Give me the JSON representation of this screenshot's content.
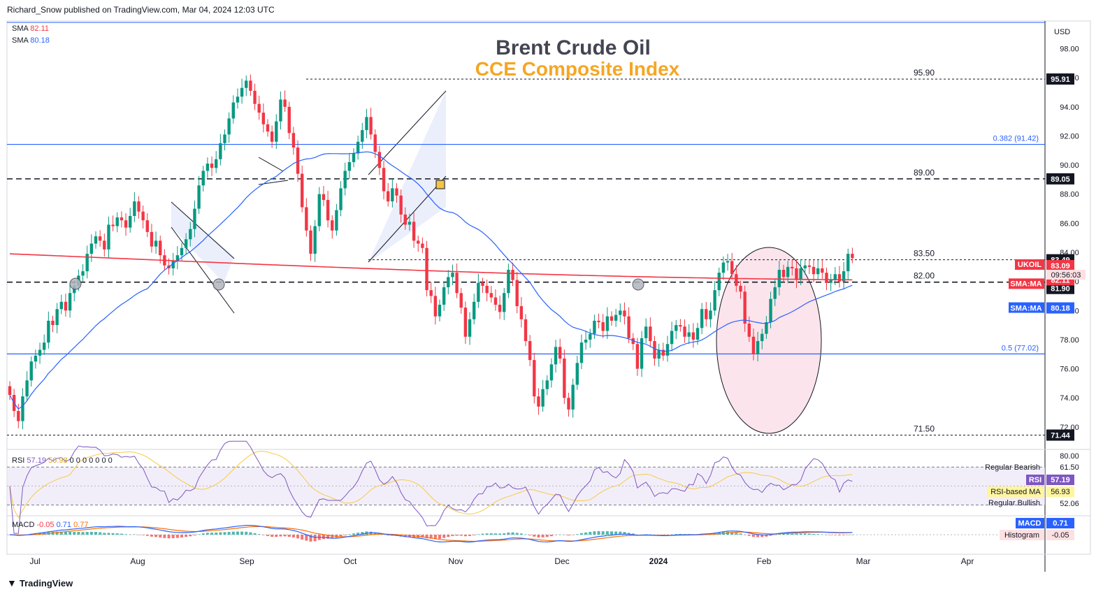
{
  "header": {
    "publisher": "Richard_Snow published on TradingView.com, Mar 04, 2024 12:03 UTC"
  },
  "title": "Brent Crude Oil",
  "subtitle": "CCE Composite Index",
  "currency": "USD",
  "sma_legend": [
    {
      "label": "SMA",
      "value": "82.11",
      "color": "#f23645"
    },
    {
      "label": "SMA",
      "value": "80.18",
      "color": "#2962ff"
    }
  ],
  "footer": {
    "brand": "TradingView"
  },
  "colors": {
    "up": "#089981",
    "down": "#f23645",
    "sma_red": "#f23645",
    "sma_blue": "#2962ff",
    "fib": "#2962ff",
    "rsi": "#7e57c2",
    "rsi_ma": "#f7c948",
    "macd": "#2962ff",
    "signal": "#ff6d00"
  },
  "chart_data": {
    "type": "candlestick",
    "symbol": "UKOIL",
    "x_ticks": [
      "Jul",
      "Aug",
      "Sep",
      "Oct",
      "Nov",
      "Dec",
      "2024",
      "Feb",
      "Mar",
      "Apr"
    ],
    "price_ticks": [
      "98.00",
      "96.00",
      "94.00",
      "92.00",
      "90.00",
      "88.00",
      "86.00",
      "84.00",
      "82.00",
      "80.00",
      "78.00",
      "76.00",
      "74.00",
      "72.00"
    ],
    "ylim": [
      70.6,
      99.9
    ],
    "closes": [
      74.2,
      73.1,
      72.4,
      74.1,
      75.2,
      76.5,
      76.9,
      77.3,
      77.8,
      79.3,
      79.0,
      80.1,
      80.6,
      80.0,
      81.2,
      81.7,
      82.4,
      82.7,
      83.9,
      84.6,
      85.1,
      84.8,
      84.2,
      85.9,
      85.8,
      86.4,
      86.2,
      85.7,
      86.5,
      87.5,
      86.8,
      86.2,
      85.4,
      84.4,
      84.8,
      83.8,
      83.1,
      82.9,
      83.4,
      83.8,
      84.3,
      84.9,
      85.6,
      87.0,
      88.6,
      89.6,
      90.1,
      89.8,
      90.4,
      91.5,
      92.1,
      93.2,
      94.3,
      94.7,
      95.3,
      95.8,
      95.1,
      94.2,
      93.6,
      92.8,
      92.3,
      91.6,
      93.0,
      94.5,
      94.0,
      92.2,
      91.2,
      89.4,
      87.1,
      85.5,
      83.9,
      85.8,
      88.0,
      87.6,
      86.2,
      85.5,
      86.9,
      88.4,
      89.6,
      90.2,
      90.8,
      91.6,
      92.4,
      93.3,
      92.1,
      90.9,
      89.8,
      88.2,
      87.5,
      88.4,
      87.9,
      86.6,
      85.9,
      86.1,
      84.8,
      84.6,
      84.3,
      81.4,
      81.0,
      79.6,
      80.4,
      81.6,
      82.3,
      82.6,
      81.2,
      80.2,
      78.2,
      79.4,
      80.6,
      81.9,
      81.7,
      81.2,
      80.9,
      80.4,
      79.9,
      81.2,
      82.8,
      82.1,
      80.3,
      79.4,
      77.9,
      76.6,
      74.1,
      73.4,
      74.6,
      75.2,
      76.3,
      77.5,
      76.7,
      74.0,
      73.2,
      74.9,
      76.4,
      77.8,
      78.0,
      78.4,
      79.3,
      79.2,
      78.6,
      79.6,
      79.3,
      79.7,
      80.0,
      79.6,
      78.1,
      77.7,
      76.0,
      78.1,
      78.9,
      77.9,
      76.7,
      77.3,
      76.9,
      77.7,
      78.6,
      79.0,
      78.9,
      78.2,
      78.5,
      78.0,
      78.8,
      80.1,
      79.4,
      80.0,
      81.4,
      82.6,
      83.3,
      83.4,
      82.5,
      81.7,
      81.3,
      79.1,
      78.2,
      77.0,
      77.9,
      78.4,
      79.2,
      80.8,
      81.6,
      82.8,
      82.3,
      83.0,
      82.9,
      82.1,
      82.9,
      83.1,
      83.0,
      82.5,
      82.9,
      82.6,
      81.9,
      82.1,
      82.5,
      82.0,
      82.7,
      83.9,
      83.6
    ],
    "sma_82_11_start": 83.9,
    "sma_82_11_end": 82.11,
    "sma_80_18_end": 80.18,
    "horizontal_levels": [
      {
        "value": 95.91,
        "label": "95.90",
        "style": "dotted"
      },
      {
        "value": 89.05,
        "label": "89.00",
        "style": "dashed"
      },
      {
        "value": 83.49,
        "label": "83.50",
        "style": "dotted"
      },
      {
        "value": 81.95,
        "label": "82.00",
        "style": "dashed"
      },
      {
        "value": 71.44,
        "label": "71.50",
        "style": "dotted"
      }
    ],
    "fib_levels": [
      {
        "value": 91.42,
        "label": "0.382 (91.42)"
      },
      {
        "value": 77.02,
        "label": "0.5 (77.02)"
      }
    ],
    "top_line": 99.8,
    "price_labels": [
      {
        "value": 95.91,
        "text": "95.91",
        "kind": "dark"
      },
      {
        "value": 89.05,
        "text": "89.05",
        "kind": "dark"
      },
      {
        "value": 83.49,
        "text": "83.49",
        "kind": "dark"
      },
      {
        "value": 81.95,
        "text": "81.95",
        "kind": "dark"
      },
      {
        "value": 81.9,
        "text": "81.90",
        "kind": "dark"
      },
      {
        "value": 71.44,
        "text": "71.44",
        "kind": "dark"
      },
      {
        "value": 83.09,
        "text": "83.09",
        "kind": "red"
      },
      {
        "value": 82.11,
        "text": "82.11",
        "kind": "red"
      },
      {
        "value": 80.18,
        "text": "80.18",
        "kind": "blue"
      }
    ],
    "tags": {
      "ukoil": "UKOIL",
      "price": "83.09",
      "countdown": "09:56:03",
      "sma_red": "SMA:MA",
      "sma_blue": "SMA:MA"
    },
    "rsi": {
      "legend_name": "RSI",
      "legend_v1": "57.19",
      "legend_v2": "56.93",
      "legend_zeros": "0 0 0 0 0 0 0",
      "ticks": [
        "80.00",
        "61.50",
        "52.06"
      ],
      "labels": {
        "bearish": "Regular Bearish",
        "bullish": "Regular Bullish",
        "rsi_tag": "RSI",
        "ma_tag": "RSI-based MA"
      },
      "value": "57.19",
      "ma_value": "56.93"
    },
    "macd": {
      "legend_name": "MACD",
      "legend_hist": "-0.05",
      "legend_macd": "0.71",
      "legend_signal": "0.77",
      "labels": {
        "macd_tag": "MACD",
        "hist_tag": "Histogram"
      },
      "value": "0.71",
      "hist_value": "-0.05"
    }
  }
}
